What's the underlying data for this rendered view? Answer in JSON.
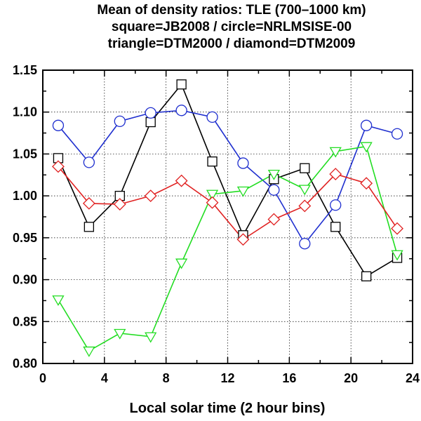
{
  "chart_data": {
    "type": "line",
    "title_lines": [
      "Mean of density ratios: TLE (700–1000 km)",
      "square=JB2008 / circle=NRLMSISE-00",
      "triangle=DTM2000 / diamond=DTM2009"
    ],
    "xlabel": "Local solar time (2 hour bins)",
    "ylabel": "",
    "xlim": [
      0,
      24
    ],
    "ylim": [
      0.8,
      1.15
    ],
    "x_ticks": [
      0,
      4,
      8,
      12,
      16,
      20,
      24
    ],
    "x_minor_ticks": [
      2,
      6,
      10,
      14,
      18,
      22
    ],
    "y_ticks": [
      0.8,
      0.85,
      0.9,
      0.95,
      1.0,
      1.05,
      1.1,
      1.15
    ],
    "y_tick_labels": [
      "0.80",
      "0.85",
      "0.90",
      "0.95",
      "1.00",
      "1.05",
      "1.10",
      "1.15"
    ],
    "x_tick_labels": [
      "0",
      "4",
      "8",
      "12",
      "16",
      "20",
      "24"
    ],
    "grid": true,
    "legend": "none (described in title)",
    "x": [
      1,
      3,
      5,
      7,
      9,
      11,
      13,
      15,
      17,
      19,
      21,
      23
    ],
    "series": [
      {
        "marker": "square",
        "color": "#000000",
        "values": [
          1.045,
          0.963,
          1.0,
          1.088,
          1.133,
          1.041,
          0.953,
          1.02,
          1.033,
          0.963,
          0.904,
          0.926
        ]
      },
      {
        "marker": "circle",
        "color": "#1f2fcf",
        "values": [
          1.084,
          1.04,
          1.089,
          1.099,
          1.102,
          1.094,
          1.039,
          1.007,
          0.943,
          0.989,
          1.084,
          1.074
        ]
      },
      {
        "marker": "triangle",
        "color": "#22dd22",
        "values": [
          0.876,
          0.815,
          0.836,
          0.832,
          0.92,
          1.002,
          1.006,
          1.026,
          1.008,
          1.053,
          1.059,
          0.93
        ]
      },
      {
        "marker": "diamond",
        "color": "#e02020",
        "values": [
          1.035,
          0.991,
          0.99,
          1.0,
          1.018,
          0.992,
          0.948,
          0.972,
          0.988,
          1.026,
          1.015,
          0.961
        ]
      }
    ]
  }
}
